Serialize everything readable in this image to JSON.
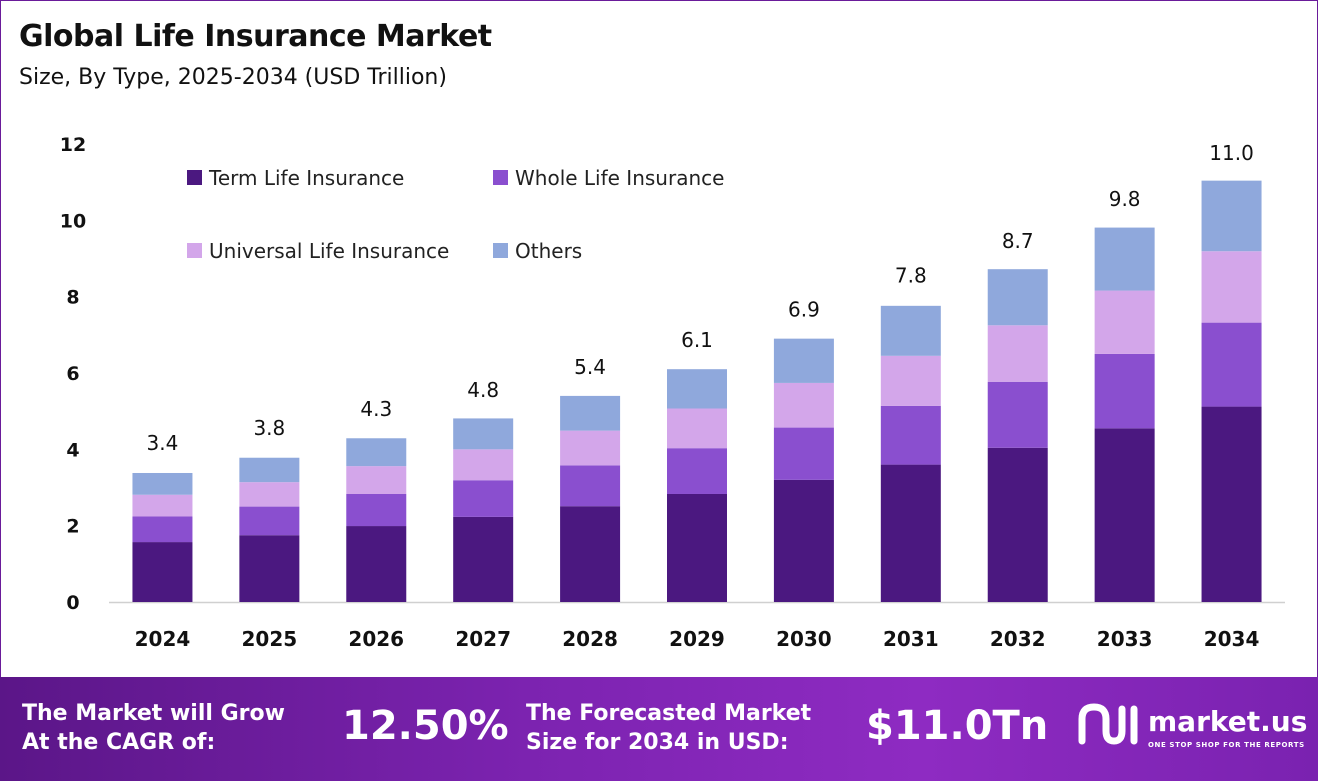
{
  "header": {
    "title": "Global Life Insurance Market",
    "subtitle": "Size, By Type, 2025-2034 (USD Trillion)"
  },
  "chart_data": {
    "type": "bar",
    "stacked": true,
    "categories": [
      "2024",
      "2025",
      "2026",
      "2027",
      "2028",
      "2029",
      "2030",
      "2031",
      "2032",
      "2033",
      "2034"
    ],
    "series": [
      {
        "name": "Term Life Insurance",
        "color": "#4b1880",
        "values": [
          1.57,
          1.75,
          1.99,
          2.23,
          2.51,
          2.83,
          3.2,
          3.6,
          4.04,
          4.55,
          5.12
        ]
      },
      {
        "name": "Whole Life Insurance",
        "color": "#8a4fcf",
        "values": [
          0.67,
          0.75,
          0.84,
          0.96,
          1.07,
          1.2,
          1.37,
          1.54,
          1.73,
          1.95,
          2.2
        ]
      },
      {
        "name": "Universal Life Insurance",
        "color": "#d3a6ea",
        "values": [
          0.57,
          0.64,
          0.73,
          0.81,
          0.91,
          1.04,
          1.17,
          1.31,
          1.48,
          1.66,
          1.87
        ]
      },
      {
        "name": "Others",
        "color": "#8fa8dc",
        "values": [
          0.57,
          0.64,
          0.73,
          0.81,
          0.91,
          1.03,
          1.16,
          1.31,
          1.47,
          1.65,
          1.85
        ]
      }
    ],
    "totals_labels": [
      "3.4",
      "3.8",
      "4.3",
      "4.8",
      "5.4",
      "6.1",
      "6.9",
      "7.8",
      "8.7",
      "9.8",
      "11.0"
    ],
    "totals": [
      3.4,
      3.8,
      4.3,
      4.8,
      5.4,
      6.1,
      6.9,
      7.8,
      8.7,
      9.8,
      11.0
    ],
    "y_ticks": [
      "0",
      "2",
      "4",
      "6",
      "8",
      "10",
      "12"
    ],
    "ylim": [
      0,
      12
    ],
    "grid": false,
    "legend_position": "top-left"
  },
  "footer": {
    "cagr_line1": "The Market will Grow",
    "cagr_line2": "At the CAGR of:",
    "cagr_value": "12.50%",
    "forecast_line1": "The Forecasted Market",
    "forecast_line2": "Size for 2034 in USD:",
    "forecast_value": "$11.0Tn",
    "brand_name": "market.us",
    "brand_tagline": "ONE STOP SHOP FOR THE REPORTS"
  }
}
